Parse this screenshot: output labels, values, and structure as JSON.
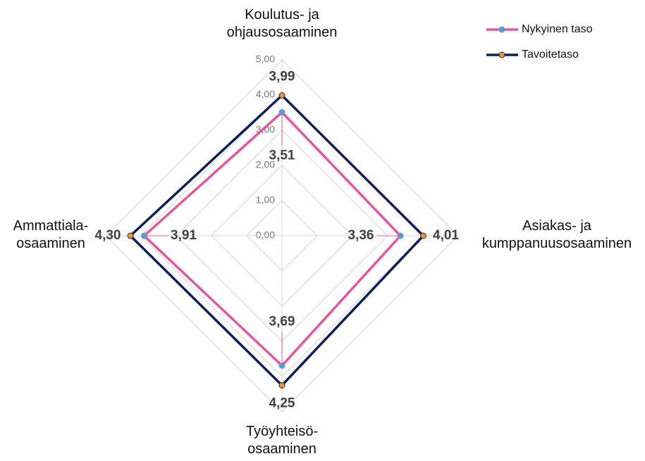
{
  "chart_data": {
    "type": "radar",
    "categories": [
      "Koulutus- ja\nohjausosaaminen",
      "Asiakas- ja\nkumppanuusosaaminen",
      "Työyhteisö-\nosaaminen",
      "Ammattiala-\nosaaminen"
    ],
    "series": [
      {
        "name": "Nykyinen taso",
        "color": "#e8559f",
        "marker_color": "#5b9bd5",
        "values": [
          3.51,
          3.36,
          3.69,
          3.91
        ],
        "value_labels": [
          "3,51",
          "3,36",
          "3,69",
          "3,91"
        ]
      },
      {
        "name": "Tavoitetaso",
        "color": "#0c1f5c",
        "marker_color": "#e9924a",
        "values": [
          3.99,
          4.01,
          4.25,
          4.3
        ],
        "value_labels": [
          "3,99",
          "4,01",
          "4,25",
          "4,30"
        ]
      }
    ],
    "rlim": [
      0,
      5
    ],
    "rticks": [
      {
        "value": 0,
        "label": "0,00"
      },
      {
        "value": 1,
        "label": "1,00"
      },
      {
        "value": 2,
        "label": "2,00"
      },
      {
        "value": 3,
        "label": "3,00"
      },
      {
        "value": 4,
        "label": "4,00"
      },
      {
        "value": 5,
        "label": "5,00"
      }
    ],
    "grid": true,
    "legend": "upper right"
  }
}
